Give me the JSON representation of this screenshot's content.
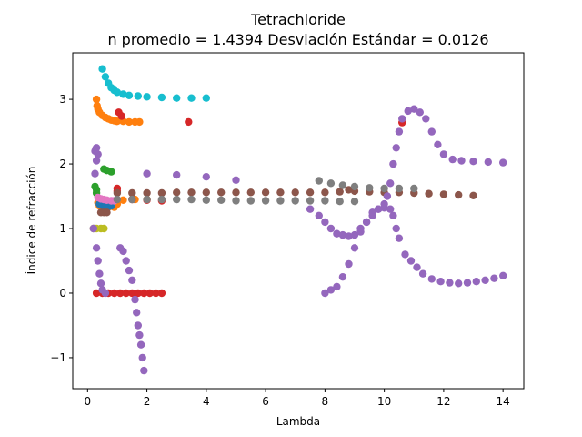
{
  "chart_data": {
    "type": "scatter",
    "title": "Tetrachloride",
    "subtitle": "n promedio = 1.4394  Desviación Estándar = 0.0126",
    "xlabel": "Lambda",
    "ylabel": "Índice de refracción",
    "xlim": [
      -0.5,
      14.7
    ],
    "ylim": [
      -1.48,
      3.72
    ],
    "x_ticks": [
      0,
      2,
      4,
      6,
      8,
      10,
      12,
      14
    ],
    "y_ticks": [
      -1,
      0,
      1,
      2,
      3
    ],
    "x_tick_labels": [
      "0",
      "2",
      "4",
      "6",
      "8",
      "10",
      "12",
      "14"
    ],
    "y_tick_labels": [
      "−1",
      "0",
      "1",
      "2",
      "3"
    ],
    "grid": false,
    "legend": false,
    "series": [
      {
        "color": "#17becf",
        "points": [
          [
            0.5,
            3.47
          ],
          [
            0.6,
            3.35
          ],
          [
            0.7,
            3.25
          ],
          [
            0.8,
            3.18
          ],
          [
            0.9,
            3.14
          ],
          [
            1.0,
            3.11
          ],
          [
            1.2,
            3.08
          ],
          [
            1.4,
            3.06
          ],
          [
            1.7,
            3.05
          ],
          [
            2.0,
            3.04
          ],
          [
            2.5,
            3.03
          ],
          [
            3.0,
            3.02
          ],
          [
            3.5,
            3.02
          ],
          [
            4.0,
            3.02
          ]
        ]
      },
      {
        "color": "#ff7f0e",
        "points": [
          [
            0.3,
            3.0
          ],
          [
            0.32,
            2.9
          ],
          [
            0.35,
            2.85
          ],
          [
            0.4,
            2.8
          ],
          [
            0.5,
            2.75
          ],
          [
            0.6,
            2.72
          ],
          [
            0.7,
            2.7
          ],
          [
            0.8,
            2.68
          ],
          [
            0.9,
            2.67
          ],
          [
            1.0,
            2.66
          ],
          [
            1.2,
            2.66
          ],
          [
            1.4,
            2.65
          ],
          [
            1.6,
            2.65
          ],
          [
            1.75,
            2.65
          ],
          [
            0.35,
            1.4
          ],
          [
            0.4,
            1.35
          ],
          [
            0.5,
            1.33
          ],
          [
            0.7,
            1.33
          ],
          [
            0.9,
            1.33
          ],
          [
            1.0,
            1.38
          ],
          [
            1.2,
            1.44
          ],
          [
            1.6,
            1.45
          ],
          [
            2.0,
            1.45
          ]
        ]
      },
      {
        "color": "#d62728",
        "points": [
          [
            1.05,
            2.8
          ],
          [
            1.15,
            2.74
          ],
          [
            3.4,
            2.65
          ],
          [
            10.6,
            2.64
          ],
          [
            0.3,
            0.0
          ],
          [
            0.5,
            0.0
          ],
          [
            0.7,
            0.0
          ],
          [
            0.9,
            0.0
          ],
          [
            1.1,
            0.0
          ],
          [
            1.3,
            0.0
          ],
          [
            1.5,
            0.0
          ],
          [
            1.7,
            0.0
          ],
          [
            1.9,
            0.0
          ],
          [
            2.1,
            0.0
          ],
          [
            2.3,
            0.0
          ],
          [
            2.5,
            0.0
          ],
          [
            1.5,
            1.45
          ],
          [
            2.0,
            1.44
          ],
          [
            2.5,
            1.43
          ],
          [
            1.0,
            1.62
          ],
          [
            1.0,
            1.58
          ]
        ]
      },
      {
        "color": "#2ca02c",
        "points": [
          [
            0.25,
            1.65
          ],
          [
            0.3,
            1.6
          ],
          [
            0.3,
            1.55
          ],
          [
            0.55,
            1.92
          ],
          [
            0.65,
            1.9
          ],
          [
            0.8,
            1.88
          ]
        ]
      },
      {
        "color": "#1f77b4",
        "points": [
          [
            0.4,
            1.38
          ],
          [
            0.5,
            1.36
          ],
          [
            0.6,
            1.35
          ],
          [
            0.7,
            1.34
          ],
          [
            0.8,
            1.35
          ]
        ]
      },
      {
        "color": "#e377c2",
        "points": [
          [
            0.35,
            1.48
          ],
          [
            0.45,
            1.46
          ],
          [
            0.55,
            1.45
          ],
          [
            0.65,
            1.44
          ],
          [
            0.8,
            1.43
          ],
          [
            0.9,
            1.43
          ]
        ]
      },
      {
        "color": "#bcbd22",
        "points": [
          [
            0.2,
            1.0
          ],
          [
            0.3,
            1.0
          ],
          [
            0.45,
            1.0
          ],
          [
            0.55,
            1.0
          ]
        ]
      },
      {
        "color": "#8c564b",
        "points": [
          [
            0.45,
            1.25
          ],
          [
            0.55,
            1.25
          ],
          [
            0.65,
            1.25
          ],
          [
            1.0,
            1.55
          ],
          [
            1.5,
            1.55
          ],
          [
            2.0,
            1.55
          ],
          [
            2.5,
            1.55
          ],
          [
            3.0,
            1.56
          ],
          [
            3.5,
            1.56
          ],
          [
            4.0,
            1.56
          ],
          [
            4.5,
            1.56
          ],
          [
            5.0,
            1.56
          ],
          [
            5.5,
            1.56
          ],
          [
            6.0,
            1.56
          ],
          [
            6.5,
            1.56
          ],
          [
            7.0,
            1.56
          ],
          [
            7.5,
            1.56
          ],
          [
            8.0,
            1.56
          ],
          [
            8.5,
            1.57
          ],
          [
            8.8,
            1.6
          ],
          [
            9.0,
            1.58
          ],
          [
            9.5,
            1.57
          ],
          [
            10.0,
            1.56
          ],
          [
            10.5,
            1.56
          ],
          [
            11.0,
            1.55
          ],
          [
            11.5,
            1.54
          ],
          [
            12.0,
            1.53
          ],
          [
            12.5,
            1.52
          ],
          [
            13.0,
            1.51
          ]
        ]
      },
      {
        "color": "#7f7f7f",
        "points": [
          [
            1.0,
            1.45
          ],
          [
            1.5,
            1.45
          ],
          [
            2.0,
            1.45
          ],
          [
            2.5,
            1.45
          ],
          [
            3.0,
            1.45
          ],
          [
            3.5,
            1.45
          ],
          [
            4.0,
            1.44
          ],
          [
            4.5,
            1.44
          ],
          [
            5.0,
            1.43
          ],
          [
            5.5,
            1.43
          ],
          [
            6.0,
            1.43
          ],
          [
            6.5,
            1.43
          ],
          [
            7.0,
            1.43
          ],
          [
            7.5,
            1.43
          ],
          [
            8.0,
            1.43
          ],
          [
            8.5,
            1.42
          ],
          [
            9.0,
            1.42
          ],
          [
            7.8,
            1.74
          ],
          [
            8.2,
            1.7
          ],
          [
            8.6,
            1.67
          ],
          [
            9.0,
            1.65
          ],
          [
            9.5,
            1.63
          ],
          [
            10.0,
            1.62
          ],
          [
            10.5,
            1.62
          ],
          [
            11.0,
            1.62
          ]
        ]
      },
      {
        "color": "#9467bd",
        "points": [
          [
            0.25,
            2.2
          ],
          [
            0.3,
            2.25
          ],
          [
            0.35,
            2.15
          ],
          [
            0.3,
            2.05
          ],
          [
            0.25,
            1.85
          ],
          [
            0.2,
            1.0
          ],
          [
            0.3,
            0.7
          ],
          [
            0.35,
            0.5
          ],
          [
            0.4,
            0.3
          ],
          [
            0.45,
            0.15
          ],
          [
            0.5,
            0.05
          ],
          [
            0.6,
            0.0
          ],
          [
            1.1,
            0.7
          ],
          [
            1.2,
            0.65
          ],
          [
            1.3,
            0.5
          ],
          [
            1.4,
            0.35
          ],
          [
            1.5,
            0.2
          ],
          [
            1.6,
            -0.1
          ],
          [
            1.65,
            -0.3
          ],
          [
            1.7,
            -0.5
          ],
          [
            1.75,
            -0.65
          ],
          [
            1.8,
            -0.8
          ],
          [
            1.85,
            -1.0
          ],
          [
            1.9,
            -1.2
          ],
          [
            2.0,
            1.85
          ],
          [
            3.0,
            1.83
          ],
          [
            4.0,
            1.8
          ],
          [
            5.0,
            1.75
          ],
          [
            7.5,
            1.3
          ],
          [
            7.8,
            1.2
          ],
          [
            8.0,
            1.1
          ],
          [
            8.2,
            1.0
          ],
          [
            8.4,
            0.92
          ],
          [
            8.6,
            0.9
          ],
          [
            8.8,
            0.88
          ],
          [
            9.0,
            0.9
          ],
          [
            9.2,
            1.0
          ],
          [
            9.4,
            1.1
          ],
          [
            9.6,
            1.2
          ],
          [
            9.8,
            1.3
          ],
          [
            10.0,
            1.38
          ],
          [
            10.1,
            1.5
          ],
          [
            10.2,
            1.7
          ],
          [
            10.3,
            2.0
          ],
          [
            10.4,
            2.25
          ],
          [
            10.5,
            2.5
          ],
          [
            10.6,
            2.7
          ],
          [
            10.8,
            2.82
          ],
          [
            11.0,
            2.85
          ],
          [
            11.2,
            2.8
          ],
          [
            11.4,
            2.7
          ],
          [
            11.6,
            2.5
          ],
          [
            11.8,
            2.3
          ],
          [
            12.0,
            2.15
          ],
          [
            12.3,
            2.07
          ],
          [
            12.6,
            2.05
          ],
          [
            13.0,
            2.04
          ],
          [
            13.5,
            2.03
          ],
          [
            14.0,
            2.02
          ],
          [
            8.0,
            0.0
          ],
          [
            8.2,
            0.05
          ],
          [
            8.4,
            0.1
          ],
          [
            8.6,
            0.25
          ],
          [
            8.8,
            0.45
          ],
          [
            9.0,
            0.7
          ],
          [
            9.2,
            0.95
          ],
          [
            9.4,
            1.1
          ],
          [
            9.6,
            1.25
          ],
          [
            9.8,
            1.3
          ],
          [
            10.0,
            1.32
          ],
          [
            10.2,
            1.3
          ],
          [
            10.3,
            1.2
          ],
          [
            10.4,
            1.0
          ],
          [
            10.5,
            0.85
          ],
          [
            10.7,
            0.6
          ],
          [
            10.9,
            0.5
          ],
          [
            11.1,
            0.4
          ],
          [
            11.3,
            0.3
          ],
          [
            11.6,
            0.22
          ],
          [
            11.9,
            0.18
          ],
          [
            12.2,
            0.16
          ],
          [
            12.5,
            0.15
          ],
          [
            12.8,
            0.16
          ],
          [
            13.1,
            0.18
          ],
          [
            13.4,
            0.2
          ],
          [
            13.7,
            0.23
          ],
          [
            14.0,
            0.27
          ]
        ]
      }
    ]
  }
}
